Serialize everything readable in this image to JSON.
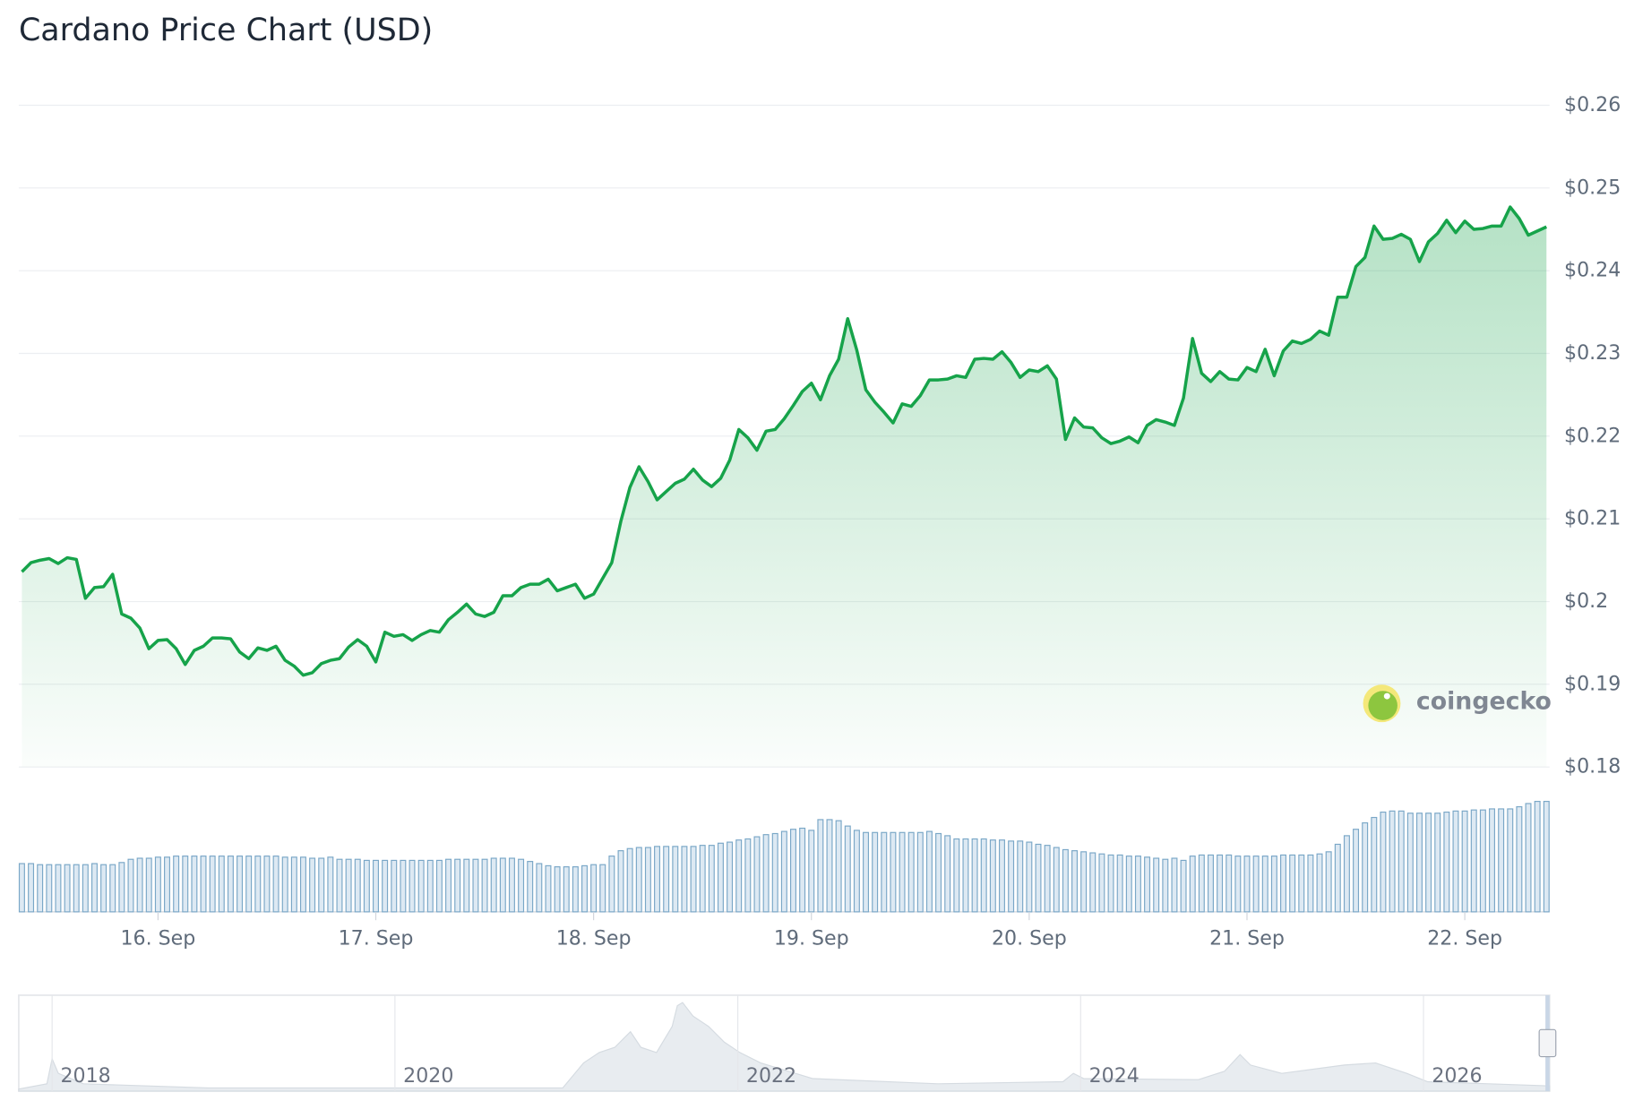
{
  "chart_data": {
    "type": "line",
    "title": "Cardano Price Chart (USD)",
    "categories": [
      null,
      null,
      null,
      null,
      null,
      null,
      null,
      null,
      null,
      null,
      null,
      null,
      null,
      null,
      null,
      "16. Sep",
      null,
      null,
      null,
      null,
      null,
      null,
      null,
      null,
      null,
      null,
      null,
      null,
      null,
      null,
      null,
      null,
      null,
      null,
      null,
      null,
      null,
      null,
      null,
      "17. Sep",
      null,
      null,
      null,
      null,
      null,
      null,
      null,
      null,
      null,
      null,
      null,
      null,
      null,
      null,
      null,
      null,
      null,
      null,
      null,
      null,
      null,
      null,
      null,
      "18. Sep",
      null,
      null,
      null,
      null,
      null,
      null,
      null,
      null,
      null,
      null,
      null,
      null,
      null,
      null,
      null,
      null,
      null,
      null,
      null,
      null,
      null,
      null,
      null,
      "19. Sep",
      null,
      null,
      null,
      null,
      null,
      null,
      null,
      null,
      null,
      null,
      null,
      null,
      null,
      null,
      null,
      null,
      null,
      null,
      null,
      null,
      null,
      null,
      null,
      "20. Sep",
      null,
      null,
      null,
      null,
      null,
      null,
      null,
      null,
      null,
      null,
      null,
      null,
      null,
      null,
      null,
      null,
      null,
      null,
      null,
      null,
      null,
      null,
      null,
      "21. Sep",
      null,
      null,
      null,
      null,
      null,
      null,
      null,
      null,
      null,
      null,
      null,
      null,
      null,
      null,
      null,
      null,
      null,
      null,
      null,
      null,
      null,
      null,
      null,
      "22. Sep",
      null,
      null,
      null,
      null,
      null,
      null,
      null,
      null,
      null
    ],
    "values": [
      0.2036,
      0.2047,
      0.205,
      0.2052,
      0.2046,
      0.2053,
      0.2051,
      0.2004,
      0.2017,
      0.2018,
      0.2033,
      0.1985,
      0.198,
      0.1968,
      0.1943,
      0.1953,
      0.1954,
      0.1943,
      0.1924,
      0.1941,
      0.1946,
      0.1956,
      0.1956,
      0.1955,
      0.1939,
      0.1931,
      0.1944,
      0.1941,
      0.1946,
      0.1929,
      0.1922,
      0.1911,
      0.1914,
      0.1925,
      0.1929,
      0.1931,
      0.1945,
      0.1954,
      0.1946,
      0.1927,
      0.1963,
      0.1958,
      0.196,
      0.1953,
      0.196,
      0.1965,
      0.1963,
      0.1978,
      0.1987,
      0.1997,
      0.1985,
      0.1982,
      0.1987,
      0.2007,
      0.2007,
      0.2017,
      0.2021,
      0.2021,
      0.2027,
      0.2013,
      0.2017,
      0.2021,
      0.2004,
      0.2009,
      0.2028,
      0.2047,
      0.2097,
      0.2138,
      0.2163,
      0.2145,
      0.2123,
      0.2133,
      0.2143,
      0.2148,
      0.216,
      0.2147,
      0.2139,
      0.2149,
      0.2171,
      0.2208,
      0.2198,
      0.2183,
      0.2206,
      0.2208,
      0.2221,
      0.2237,
      0.2254,
      0.2264,
      0.2244,
      0.2273,
      0.2293,
      0.2342,
      0.2304,
      0.2256,
      0.2241,
      0.2229,
      0.2216,
      0.2239,
      0.2236,
      0.2249,
      0.2268,
      0.2268,
      0.2269,
      0.2273,
      0.2271,
      0.2293,
      0.2294,
      0.2293,
      0.2302,
      0.2289,
      0.2271,
      0.228,
      0.2278,
      0.2285,
      0.2269,
      0.2196,
      0.2222,
      0.2211,
      0.221,
      0.2198,
      0.2191,
      0.2194,
      0.2199,
      0.2192,
      0.2213,
      0.222,
      0.2217,
      0.2213,
      0.2246,
      0.2318,
      0.2276,
      0.2266,
      0.2278,
      0.2269,
      0.2268,
      0.2283,
      0.2278,
      0.2305,
      0.2273,
      0.2303,
      0.2315,
      0.2312,
      0.2317,
      0.2327,
      0.2322,
      0.2368,
      0.2368,
      0.2405,
      0.2416,
      0.2454,
      0.2438,
      0.2439,
      0.2444,
      0.2438,
      0.2411,
      0.2435,
      0.2445,
      0.2461,
      0.2446,
      0.246,
      0.245,
      0.2451,
      0.2454,
      0.2454,
      0.2477,
      0.2463,
      0.2443,
      0.2448,
      0.2453
    ],
    "color": "#16a34a",
    "ylim": [
      0.18,
      0.26
    ],
    "yticks": [
      {
        "value": 0.18,
        "label": "$0.18"
      },
      {
        "value": 0.19,
        "label": "$0.19"
      },
      {
        "value": 0.2,
        "label": "$0.2"
      },
      {
        "value": 0.21,
        "label": "$0.21"
      },
      {
        "value": 0.22,
        "label": "$0.22"
      },
      {
        "value": 0.23,
        "label": "$0.23"
      },
      {
        "value": 0.24,
        "label": "$0.24"
      },
      {
        "value": 0.25,
        "label": "$0.25"
      },
      {
        "value": 0.26,
        "label": "$0.26"
      }
    ],
    "grid": true,
    "volume": [
      45,
      45,
      44,
      44,
      44,
      44,
      44,
      44,
      45,
      44,
      44,
      46,
      49,
      50,
      50,
      51,
      51,
      52,
      52,
      52,
      52,
      52,
      52,
      52,
      52,
      52,
      52,
      52,
      52,
      51,
      51,
      51,
      50,
      50,
      51,
      49,
      49,
      49,
      48,
      48,
      48,
      48,
      48,
      48,
      48,
      48,
      48,
      49,
      49,
      49,
      49,
      49,
      50,
      50,
      50,
      49,
      47,
      45,
      43,
      42,
      42,
      42,
      43,
      44,
      44,
      52,
      57,
      59,
      60,
      60,
      61,
      61,
      61,
      61,
      61,
      62,
      62,
      64,
      65,
      67,
      68,
      70,
      72,
      73,
      75,
      77,
      78,
      76,
      86,
      86,
      85,
      80,
      76,
      74,
      74,
      74,
      74,
      74,
      74,
      74,
      75,
      73,
      71,
      68,
      68,
      68,
      68,
      67,
      67,
      66,
      66,
      65,
      63,
      62,
      60,
      58,
      57,
      56,
      55,
      54,
      53,
      53,
      52,
      52,
      51,
      50,
      49,
      50,
      48,
      52,
      53,
      53,
      53,
      53,
      52,
      52,
      52,
      52,
      52,
      53,
      53,
      53,
      53,
      54,
      56,
      63,
      71,
      77,
      83,
      88,
      93,
      94,
      94,
      92,
      92,
      92,
      92,
      93,
      94,
      94,
      95,
      95,
      96,
      96,
      96,
      98,
      101,
      103,
      103
    ],
    "volume_color": "#7aa7c7",
    "watermark": "coingecko"
  },
  "navigator": {
    "labels": [
      "2018",
      "2020",
      "2022",
      "2024",
      "2026"
    ]
  }
}
